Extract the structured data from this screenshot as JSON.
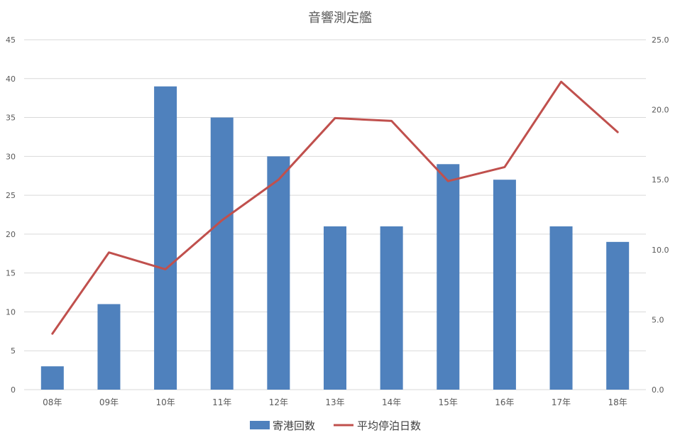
{
  "chart_data": {
    "type": "bar",
    "title": "音響測定艦",
    "categories": [
      "08年",
      "09年",
      "10年",
      "11年",
      "12年",
      "13年",
      "14年",
      "15年",
      "16年",
      "17年",
      "18年"
    ],
    "series": [
      {
        "name": "寄港回数",
        "type": "bar",
        "axis": "left",
        "color": "#4f81bd",
        "values": [
          3,
          11,
          39,
          35,
          30,
          21,
          21,
          29,
          27,
          21,
          19
        ]
      },
      {
        "name": "平均停泊日数",
        "type": "line",
        "axis": "right",
        "color": "#c0504d",
        "values": [
          4.0,
          9.8,
          8.6,
          12.1,
          15.0,
          19.4,
          19.2,
          14.9,
          15.9,
          22.0,
          18.4
        ]
      }
    ],
    "y_left": {
      "min": 0,
      "max": 45,
      "step": 5,
      "tick_labels": [
        "0",
        "5",
        "10",
        "15",
        "20",
        "25",
        "30",
        "35",
        "40",
        "45"
      ]
    },
    "y_right": {
      "min": 0,
      "max": 25,
      "step": 5,
      "tick_labels": [
        "0.0",
        "5.0",
        "10.0",
        "15.0",
        "20.0",
        "25.0"
      ]
    },
    "grid": true,
    "legend": "bottom"
  }
}
